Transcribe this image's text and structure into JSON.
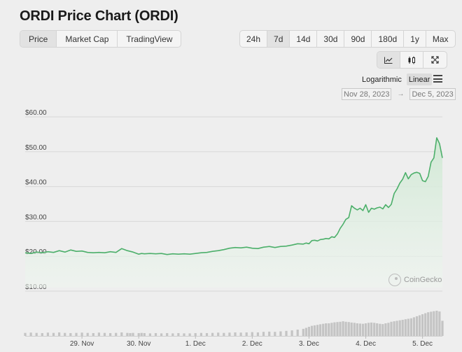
{
  "title": "ORDI Price Chart (ORDI)",
  "tabs": [
    {
      "label": "Price",
      "active": true
    },
    {
      "label": "Market Cap",
      "active": false
    },
    {
      "label": "TradingView",
      "active": false
    }
  ],
  "ranges": [
    {
      "label": "24h",
      "active": false
    },
    {
      "label": "7d",
      "active": true
    },
    {
      "label": "14d",
      "active": false
    },
    {
      "label": "30d",
      "active": false
    },
    {
      "label": "90d",
      "active": false
    },
    {
      "label": "180d",
      "active": false
    },
    {
      "label": "1y",
      "active": false
    },
    {
      "label": "Max",
      "active": false
    }
  ],
  "chart_types": [
    {
      "icon": "line-chart-icon",
      "active": true
    },
    {
      "icon": "candlestick-icon",
      "active": false
    },
    {
      "icon": "expand-icon",
      "active": false
    }
  ],
  "scale": {
    "logarithmic": "Logarithmic",
    "linear": "Linear",
    "selected": "linear"
  },
  "date_range": {
    "from": "Nov 28, 2023",
    "to": "Dec 5, 2023",
    "arrow": "→"
  },
  "watermark": "CoinGecko",
  "colors": {
    "line": "#4caf6a",
    "fill": "#d6ecd9",
    "volume": "#c4c4c4",
    "grid": "#d8d8d8"
  },
  "chart_data": {
    "type": "area",
    "title": "",
    "xlabel": "",
    "ylabel": "",
    "y_ticks": [
      "$10.00",
      "$20.00",
      "$30.00",
      "$40.00",
      "$50.00",
      "$60.00"
    ],
    "ylim": [
      10,
      60
    ],
    "x_ticks": [
      "29. Nov",
      "30. Nov",
      "1. Dec",
      "2. Dec",
      "3. Dec",
      "4. Dec",
      "5. Dec"
    ],
    "x_tick_days": [
      1,
      2,
      3,
      4,
      5,
      6,
      7
    ],
    "grid": true,
    "series": [
      {
        "x_days": [
          0.0,
          0.1,
          0.2,
          0.3,
          0.4,
          0.5,
          0.6,
          0.7,
          0.8,
          0.9,
          1.0,
          1.1,
          1.2,
          1.3,
          1.4,
          1.5,
          1.6,
          1.7,
          1.8,
          1.85,
          1.9,
          2.0,
          2.05,
          2.1,
          2.2,
          2.3,
          2.4,
          2.5,
          2.6,
          2.7,
          2.8,
          2.9,
          3.0,
          3.1,
          3.2,
          3.3,
          3.4,
          3.5,
          3.6,
          3.7,
          3.8,
          3.9,
          4.0,
          4.1,
          4.2,
          4.3,
          4.4,
          4.5,
          4.6,
          4.7,
          4.8,
          4.9,
          4.95,
          5.0,
          5.05,
          5.1,
          5.15,
          5.2,
          5.25,
          5.3,
          5.35,
          5.4,
          5.45,
          5.5,
          5.55,
          5.6,
          5.65,
          5.7,
          5.75,
          5.8,
          5.85,
          5.9,
          5.95,
          6.0,
          6.05,
          6.1,
          6.15,
          6.2,
          6.25,
          6.3,
          6.35,
          6.4,
          6.45,
          6.5,
          6.55,
          6.6,
          6.65,
          6.7,
          6.75,
          6.8,
          6.85,
          6.9,
          6.95,
          7.0,
          7.05,
          7.1,
          7.15,
          7.2,
          7.25,
          7.3,
          7.35
        ],
        "values": [
          20.0,
          19.8,
          20.2,
          20.0,
          20.3,
          20.1,
          20.6,
          20.2,
          20.8,
          20.4,
          20.5,
          20.1,
          20.0,
          20.1,
          20.0,
          20.3,
          20.1,
          21.2,
          20.6,
          20.4,
          20.2,
          19.6,
          19.8,
          19.7,
          19.8,
          19.7,
          19.8,
          19.5,
          19.7,
          19.6,
          19.7,
          19.6,
          19.8,
          20.0,
          20.1,
          20.4,
          20.6,
          20.9,
          21.3,
          21.5,
          21.4,
          21.6,
          21.3,
          21.2,
          21.6,
          21.8,
          21.5,
          21.8,
          21.9,
          22.2,
          22.6,
          22.5,
          22.8,
          22.6,
          23.5,
          23.6,
          23.4,
          23.8,
          23.9,
          24.1,
          24.0,
          24.6,
          24.4,
          25.4,
          27.0,
          28.2,
          29.6,
          30.1,
          33.5,
          32.8,
          32.3,
          32.8,
          32.1,
          33.8,
          31.6,
          32.8,
          32.5,
          32.9,
          33.1,
          32.6,
          33.8,
          33.0,
          33.9,
          37.0,
          38.3,
          40.0,
          41.1,
          43.0,
          41.2,
          42.4,
          42.9,
          43.1,
          42.8,
          40.7,
          40.4,
          41.9,
          46.0,
          47.2,
          53.0,
          51.3,
          47.2
        ],
        "volume_relative": [
          0.12,
          0.13,
          0.12,
          0.11,
          0.13,
          0.12,
          0.14,
          0.12,
          0.11,
          0.12,
          0.13,
          0.12,
          0.11,
          0.13,
          0.12,
          0.11,
          0.12,
          0.14,
          0.12,
          0.11,
          0.12,
          0.11,
          0.12,
          0.11,
          0.1,
          0.11,
          0.1,
          0.11,
          0.1,
          0.11,
          0.1,
          0.1,
          0.11,
          0.12,
          0.11,
          0.12,
          0.13,
          0.12,
          0.13,
          0.14,
          0.13,
          0.14,
          0.15,
          0.14,
          0.16,
          0.17,
          0.16,
          0.18,
          0.2,
          0.22,
          0.25,
          0.28,
          0.32,
          0.36,
          0.4,
          0.42,
          0.44,
          0.46,
          0.48,
          0.5,
          0.5,
          0.52,
          0.54,
          0.55,
          0.56,
          0.58,
          0.56,
          0.55,
          0.53,
          0.52,
          0.5,
          0.49,
          0.48,
          0.5,
          0.52,
          0.53,
          0.52,
          0.5,
          0.48,
          0.47,
          0.5,
          0.52,
          0.56,
          0.58,
          0.6,
          0.62,
          0.64,
          0.66,
          0.68,
          0.7,
          0.74,
          0.78,
          0.82,
          0.86,
          0.9,
          0.94,
          0.96,
          0.98,
          1.0,
          0.97,
          0.6
        ]
      }
    ]
  }
}
